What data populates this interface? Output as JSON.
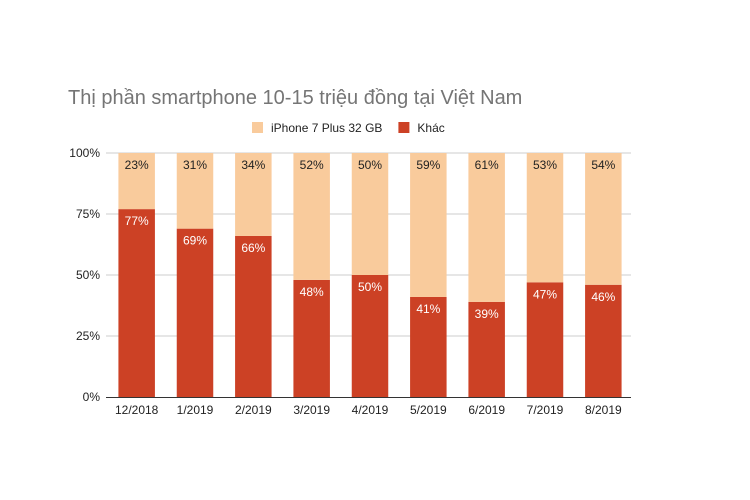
{
  "chart_data": {
    "type": "bar",
    "stacked": true,
    "percent_stacked": true,
    "title": "Thị phần smartphone 10-15 triệu đồng tại Việt Nam",
    "xlabel": "",
    "ylabel": "",
    "categories": [
      "12/2018",
      "1/2019",
      "2/2019",
      "3/2019",
      "4/2019",
      "5/2019",
      "6/2019",
      "7/2019",
      "8/2019"
    ],
    "series": [
      {
        "name": "Khác",
        "color": "#cc4125",
        "label_color": "#ffffff",
        "values": [
          77,
          69,
          66,
          48,
          50,
          41,
          39,
          47,
          46
        ]
      },
      {
        "name": "iPhone 7 Plus 32 GB",
        "color": "#f9cb9c",
        "label_color": "#222222",
        "values": [
          23,
          31,
          34,
          52,
          50,
          59,
          61,
          53,
          54
        ]
      }
    ],
    "legend_order": [
      "iPhone 7 Plus 32 GB",
      "Khác"
    ],
    "ylim": [
      0,
      100
    ],
    "yticks": [
      "0%",
      "25%",
      "50%",
      "75%",
      "100%"
    ],
    "grid": true,
    "legend_position": "top"
  }
}
